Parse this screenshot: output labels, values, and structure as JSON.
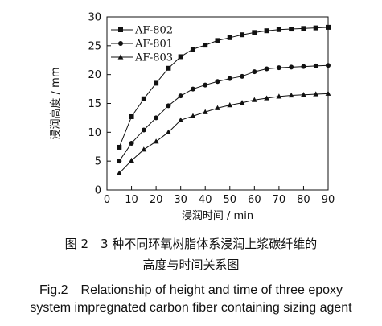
{
  "chart_data": {
    "type": "line",
    "x": [
      5,
      10,
      15,
      20,
      25,
      30,
      35,
      40,
      45,
      50,
      55,
      60,
      65,
      70,
      75,
      80,
      85,
      90
    ],
    "series": [
      {
        "name": "AF-802",
        "marker": "square",
        "values": [
          7.4,
          12.7,
          15.8,
          18.5,
          21.1,
          23.1,
          24.4,
          25.1,
          25.9,
          26.4,
          26.9,
          27.3,
          27.6,
          27.8,
          27.9,
          28.0,
          28.1,
          28.2
        ]
      },
      {
        "name": "AF-801",
        "marker": "circle",
        "values": [
          5.0,
          8.1,
          10.4,
          12.5,
          14.6,
          16.3,
          17.5,
          18.2,
          18.8,
          19.3,
          19.7,
          20.5,
          21.0,
          21.2,
          21.3,
          21.4,
          21.5,
          21.6
        ]
      },
      {
        "name": "AF-803",
        "marker": "triangle",
        "values": [
          2.9,
          5.1,
          7.0,
          8.4,
          10.0,
          12.1,
          12.8,
          13.5,
          14.2,
          14.7,
          15.1,
          15.6,
          15.9,
          16.2,
          16.4,
          16.5,
          16.6,
          16.7
        ]
      }
    ],
    "xlabel": "浸润时间 / min",
    "ylabel": "浸润高度 / mm",
    "xlim": [
      0,
      90
    ],
    "ylim": [
      0,
      30
    ],
    "xticks": [
      0,
      10,
      20,
      30,
      40,
      50,
      60,
      70,
      80,
      90
    ],
    "yticks": [
      0,
      5,
      10,
      15,
      20,
      25,
      30
    ],
    "grid": false,
    "legend_position": "top-left",
    "line_color": "#111111"
  },
  "caption": {
    "cn_line1": "图 2　3 种不同环氧树脂体系浸润上浆碳纤维的",
    "cn_line2": "高度与时间关系图",
    "en_line1": "Fig.2　Relationship of height and time of three epoxy",
    "en_line2": "system impregnated carbon fiber containing sizing agent"
  }
}
